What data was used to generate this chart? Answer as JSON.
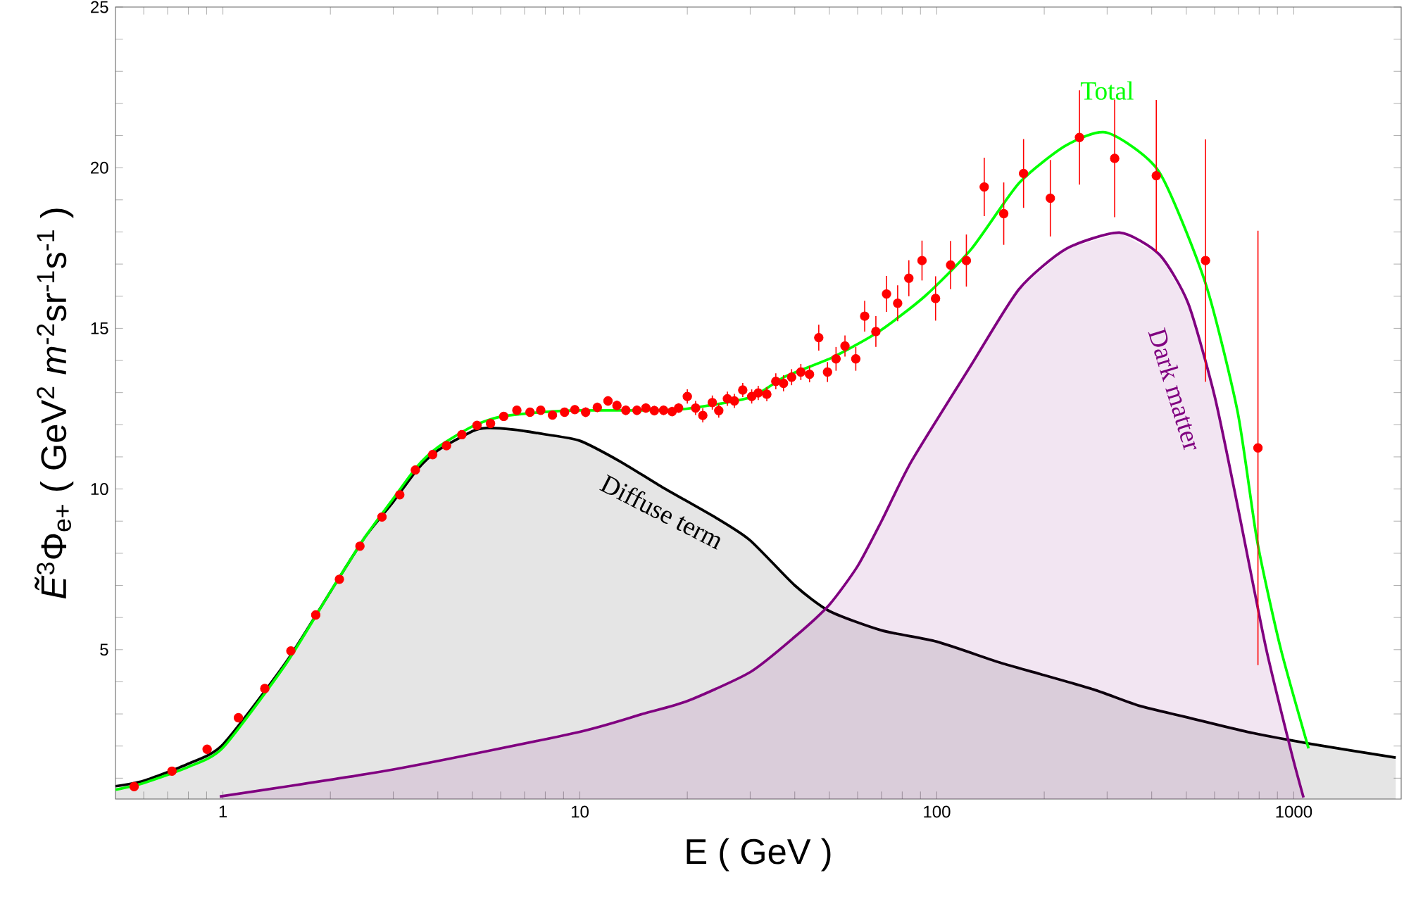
{
  "chart_data": {
    "type": "line",
    "xlabel": "E ( GeV )",
    "ylabel": "*Ẽ*$^{3}$Φ$_{e+}$ ( GeV$^{2}$ *m*$^{-2}$sr$^{-1}$s$^{-1}$ )",
    "log": "x",
    "xlim": [
      0.5,
      2000
    ],
    "ylim": [
      0.35,
      25
    ],
    "xticks": [
      {
        "value": 0.6,
        "label": null
      },
      {
        "value": 0.7,
        "label": null
      },
      {
        "value": 0.8,
        "label": null
      },
      {
        "value": 0.9,
        "label": null
      },
      1,
      {
        "value": 2,
        "label": null
      },
      {
        "value": 3,
        "label": null
      },
      {
        "value": 4,
        "label": null
      },
      {
        "value": 5,
        "label": null
      },
      {
        "value": 6,
        "label": null
      },
      {
        "value": 7,
        "label": null
      },
      {
        "value": 8,
        "label": null
      },
      {
        "value": 9,
        "label": null
      },
      10,
      {
        "value": 20,
        "label": null
      },
      {
        "value": 30,
        "label": null
      },
      {
        "value": 40,
        "label": null
      },
      {
        "value": 50,
        "label": null
      },
      {
        "value": 60,
        "label": null
      },
      {
        "value": 70,
        "label": null
      },
      {
        "value": 80,
        "label": null
      },
      {
        "value": 90,
        "label": null
      },
      100,
      {
        "value": 200,
        "label": null
      },
      {
        "value": 300,
        "label": null
      },
      {
        "value": 400,
        "label": null
      },
      {
        "value": 500,
        "label": null
      },
      {
        "value": 600,
        "label": null
      },
      {
        "value": 700,
        "label": null
      },
      {
        "value": 800,
        "label": null
      },
      {
        "value": 900,
        "label": null
      },
      1000
    ],
    "yticks": [
      {
        "value": 1,
        "label": null
      },
      {
        "value": 2,
        "label": null
      },
      {
        "value": 3,
        "label": null
      },
      {
        "value": 4,
        "label": null
      },
      5,
      {
        "value": 6,
        "label": null
      },
      {
        "value": 7,
        "label": null
      },
      {
        "value": 8,
        "label": null
      },
      {
        "value": 9,
        "label": null
      },
      10,
      {
        "value": 11,
        "label": null
      },
      {
        "value": 12,
        "label": null
      },
      {
        "value": 13,
        "label": null
      },
      {
        "value": 14,
        "label": null
      },
      15,
      {
        "value": 16,
        "label": null
      },
      {
        "value": 17,
        "label": null
      },
      {
        "value": 18,
        "label": null
      },
      {
        "value": 19,
        "label": null
      },
      20,
      {
        "value": 21,
        "label": null
      },
      {
        "value": 22,
        "label": null
      },
      {
        "value": 23,
        "label": null
      },
      {
        "value": 24,
        "label": null
      },
      25
    ],
    "grid": false,
    "series": [
      {
        "type": "area",
        "name": "Diffuse term",
        "color": "#000000",
        "x": [
          0.5,
          0.6,
          0.8,
          1,
          1.5,
          2,
          2.5,
          3,
          3.5,
          4,
          5,
          5.5,
          6.5,
          8,
          10,
          13,
          17,
          24,
          30,
          40,
          50,
          70,
          100,
          150,
          195,
          275,
          370,
          500,
          742,
          1100,
          1931
        ],
        "values": [
          0.75,
          0.92,
          1.45,
          2.05,
          4.6,
          6.8,
          8.5,
          9.6,
          10.6,
          11.2,
          11.8,
          11.9,
          11.85,
          11.7,
          11.5,
          10.85,
          10.06,
          9.11,
          8.4,
          7.0,
          6.2,
          5.6,
          5.25,
          4.6,
          4.24,
          3.76,
          3.25,
          2.9,
          2.44,
          2.08,
          1.64
        ]
      },
      {
        "type": "area",
        "name": "Dark matter",
        "color": "#800080",
        "x": [
          0.98,
          3,
          9.7,
          15,
          20,
          30,
          40,
          50,
          60,
          70,
          85,
          125,
          170,
          230,
          325,
          420,
          506,
          600,
          696,
          835,
          982,
          1065
        ],
        "values": [
          0.43,
          1.27,
          2.41,
          3.0,
          3.4,
          4.3,
          5.4,
          6.4,
          7.6,
          9.0,
          10.87,
          13.87,
          16.22,
          17.47,
          17.98,
          17.3,
          15.78,
          12.9,
          9.48,
          5.08,
          1.86,
          0.4
        ]
      },
      {
        "type": "line",
        "name": "Total",
        "color": "#00ff00",
        "x": [
          0.5,
          0.6,
          0.8,
          1,
          1.5,
          2,
          2.5,
          3,
          3.5,
          4,
          5,
          6,
          8,
          10,
          15,
          20,
          30,
          37.6,
          50.9,
          68.8,
          92.6,
          125,
          170,
          230,
          300,
          419,
          566,
          696,
          790,
          917,
          1100
        ],
        "values": [
          0.64,
          0.85,
          1.35,
          1.95,
          4.55,
          6.8,
          8.5,
          9.7,
          10.7,
          11.3,
          11.95,
          12.25,
          12.4,
          12.45,
          12.45,
          12.5,
          12.85,
          13.5,
          14.09,
          14.9,
          16.0,
          17.47,
          19.52,
          20.69,
          21.09,
          19.88,
          16.4,
          12.41,
          8.38,
          5.08,
          1.93
        ]
      },
      {
        "type": "scatter",
        "color": "#ff0000",
        "x": [
          0.564,
          0.72,
          0.903,
          1.105,
          1.31,
          1.55,
          1.82,
          2.12,
          2.42,
          2.79,
          3.13,
          3.46,
          3.87,
          4.23,
          4.67,
          5.15,
          5.62,
          6.12,
          6.66,
          7.25,
          7.77,
          8.38,
          9.06,
          9.68,
          10.38,
          11.19,
          11.99,
          12.7,
          13.45,
          14.45,
          15.31,
          16.17,
          17.16,
          18.13,
          18.91,
          20.0,
          21.1,
          22.1,
          23.5,
          24.5,
          25.9,
          27.1,
          28.6,
          30.3,
          31.6,
          33.4,
          35.4,
          37.2,
          39.2,
          41.6,
          44.0,
          46.7,
          49.4,
          52.2,
          55.3,
          59.3,
          62.8,
          67.5,
          72.3,
          77.7,
          83.5,
          90.9,
          99.2,
          109.3,
          121,
          135.8,
          154,
          175,
          208,
          251,
          315,
          412,
          566,
          794
        ],
        "values": [
          0.74,
          1.22,
          1.9,
          2.88,
          3.79,
          4.96,
          6.08,
          7.19,
          8.22,
          9.13,
          9.82,
          10.59,
          11.07,
          11.35,
          11.69,
          11.98,
          12.04,
          12.26,
          12.45,
          12.39,
          12.45,
          12.3,
          12.39,
          12.47,
          12.39,
          12.54,
          12.74,
          12.6,
          12.45,
          12.45,
          12.52,
          12.44,
          12.45,
          12.41,
          12.52,
          12.88,
          12.52,
          12.29,
          12.69,
          12.44,
          12.81,
          12.74,
          13.08,
          12.88,
          12.99,
          12.95,
          13.35,
          13.29,
          13.48,
          13.64,
          13.57,
          14.71,
          13.64,
          14.05,
          14.45,
          14.05,
          15.38,
          14.9,
          16.07,
          15.78,
          16.56,
          17.11,
          15.93,
          16.97,
          17.11,
          19.4,
          18.57,
          19.82,
          19.05,
          20.94,
          20.29,
          19.75,
          17.11,
          11.28
        ],
        "errors": [
          null,
          null,
          null,
          null,
          null,
          null,
          null,
          null,
          null,
          null,
          null,
          null,
          null,
          null,
          null,
          null,
          null,
          null,
          null,
          null,
          null,
          null,
          null,
          null,
          0.15,
          0.15,
          0.15,
          0.15,
          0.15,
          0.15,
          0.15,
          0.15,
          0.15,
          0.15,
          0.15,
          0.22,
          0.22,
          0.22,
          0.22,
          0.22,
          0.22,
          0.22,
          0.22,
          0.22,
          0.22,
          0.22,
          0.25,
          0.25,
          0.25,
          0.25,
          0.25,
          0.4,
          0.31,
          0.37,
          0.33,
          0.37,
          0.48,
          0.48,
          0.56,
          0.56,
          0.56,
          0.62,
          0.69,
          0.75,
          0.81,
          0.91,
          0.97,
          1.07,
          1.19,
          1.47,
          1.83,
          2.36,
          3.77,
          6.76
        ]
      }
    ]
  }
}
